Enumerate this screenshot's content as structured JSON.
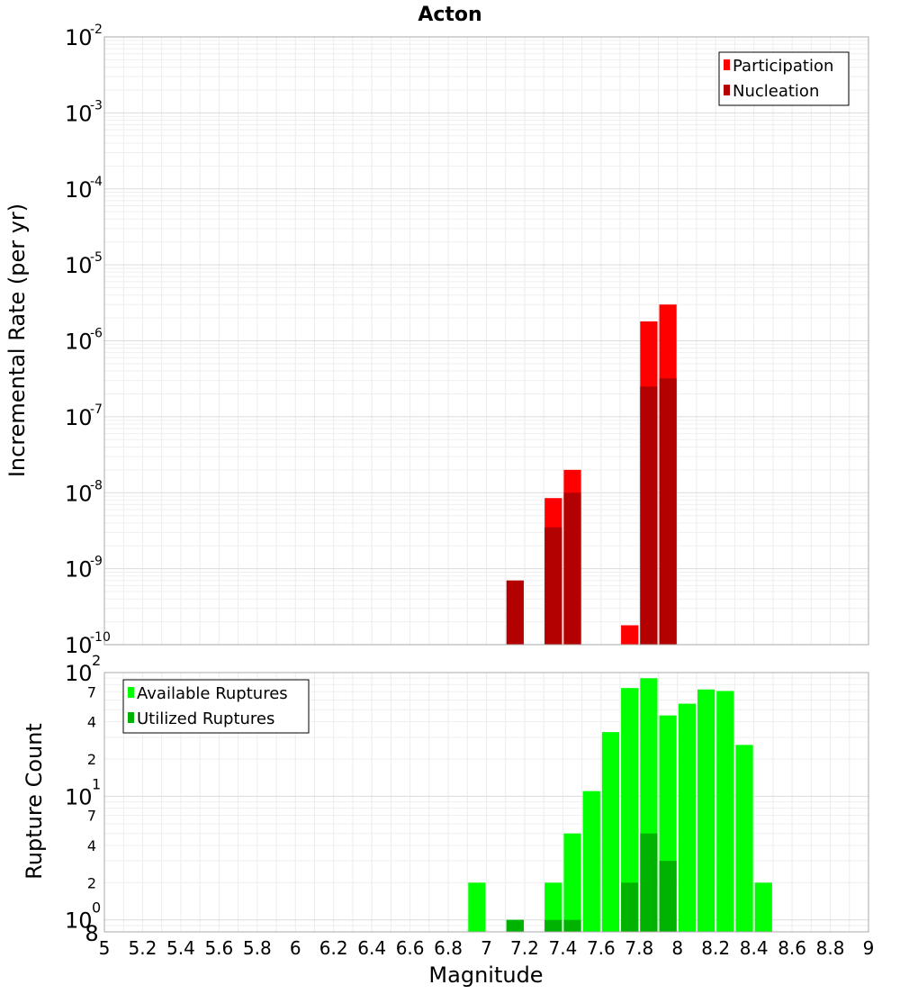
{
  "chart_data": [
    {
      "title": "Acton",
      "type": "bar",
      "scale": "log",
      "ylabel": "Incremental Rate (per yr)",
      "xlabel": "",
      "xlim": [
        5,
        9
      ],
      "ylim": [
        1e-10,
        0.01
      ],
      "y_ticks": [
        {
          "base": "10",
          "exp": "-2"
        },
        {
          "base": "10",
          "exp": "-3"
        },
        {
          "base": "10",
          "exp": "-4"
        },
        {
          "base": "10",
          "exp": "-5"
        },
        {
          "base": "10",
          "exp": "-6"
        },
        {
          "base": "10",
          "exp": "-7"
        },
        {
          "base": "10",
          "exp": "-8"
        },
        {
          "base": "10",
          "exp": "-9"
        },
        {
          "base": "10",
          "exp": "-10"
        }
      ],
      "grid": true,
      "legend_position": "top-right",
      "series": [
        {
          "name": "Participation",
          "color": "#ff0000",
          "points": [
            {
              "x": 7.35,
              "y": 8.5e-09
            },
            {
              "x": 7.45,
              "y": 2e-08
            },
            {
              "x": 7.75,
              "y": 1.8e-10
            },
            {
              "x": 7.85,
              "y": 1.8e-06
            },
            {
              "x": 7.95,
              "y": 3e-06
            }
          ]
        },
        {
          "name": "Nucleation",
          "color": "#b30000",
          "points": [
            {
              "x": 7.15,
              "y": 7e-10
            },
            {
              "x": 7.35,
              "y": 3.5e-09
            },
            {
              "x": 7.45,
              "y": 1e-08
            },
            {
              "x": 7.85,
              "y": 2.5e-07
            },
            {
              "x": 7.95,
              "y": 3.2e-07
            }
          ]
        }
      ]
    },
    {
      "type": "bar",
      "scale": "log",
      "ylabel": "Rupture Count",
      "xlabel": "Magnitude",
      "xlim": [
        5,
        9
      ],
      "ylim": [
        0.8,
        100
      ],
      "x_ticks": [
        "5",
        "5.2",
        "5.4",
        "5.6",
        "5.8",
        "6",
        "6.2",
        "6.4",
        "6.6",
        "6.8",
        "7",
        "7.2",
        "7.4",
        "7.6",
        "7.8",
        "8",
        "8.2",
        "8.4",
        "8.6",
        "8.8",
        "9"
      ],
      "y_decade_ticks": [
        {
          "base": "10",
          "exp": "2",
          "value": 100
        },
        {
          "base": "10",
          "exp": "1",
          "value": 10
        },
        {
          "base": "10",
          "exp": "0",
          "value": 1
        }
      ],
      "y_minor_ticks": [
        {
          "label": "7",
          "value": 70
        },
        {
          "label": "4",
          "value": 40
        },
        {
          "label": "2",
          "value": 20
        },
        {
          "label": "7",
          "value": 7
        },
        {
          "label": "4",
          "value": 4
        },
        {
          "label": "2",
          "value": 2
        },
        {
          "label": "8",
          "value": 0.8
        }
      ],
      "grid": true,
      "legend_position": "top-left",
      "series": [
        {
          "name": "Available Ruptures",
          "color": "#00ff00",
          "points": [
            {
              "x": 6.95,
              "y": 2
            },
            {
              "x": 7.15,
              "y": 1
            },
            {
              "x": 7.35,
              "y": 2
            },
            {
              "x": 7.45,
              "y": 5
            },
            {
              "x": 7.55,
              "y": 11
            },
            {
              "x": 7.65,
              "y": 33
            },
            {
              "x": 7.75,
              "y": 75
            },
            {
              "x": 7.85,
              "y": 90
            },
            {
              "x": 7.95,
              "y": 45
            },
            {
              "x": 8.05,
              "y": 56
            },
            {
              "x": 8.15,
              "y": 73
            },
            {
              "x": 8.25,
              "y": 71
            },
            {
              "x": 8.35,
              "y": 26
            },
            {
              "x": 8.45,
              "y": 2
            }
          ]
        },
        {
          "name": "Utilized Ruptures",
          "color": "#00b300",
          "points": [
            {
              "x": 7.15,
              "y": 1
            },
            {
              "x": 7.35,
              "y": 1
            },
            {
              "x": 7.45,
              "y": 1
            },
            {
              "x": 7.75,
              "y": 2
            },
            {
              "x": 7.85,
              "y": 5
            },
            {
              "x": 7.95,
              "y": 3
            }
          ]
        }
      ]
    }
  ]
}
